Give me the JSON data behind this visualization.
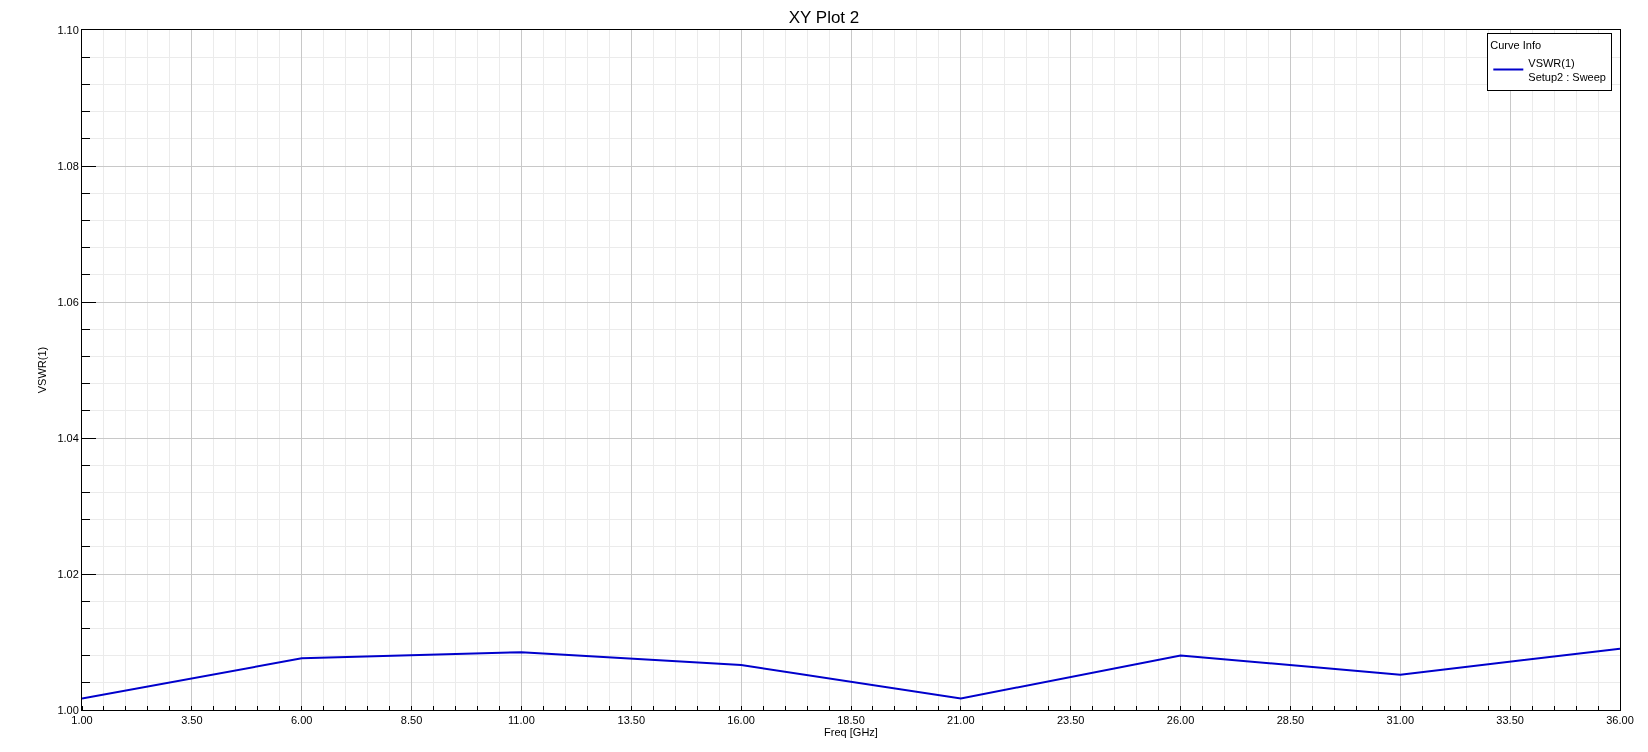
{
  "chart_data": {
    "type": "line",
    "title": "XY Plot 2",
    "xlabel": "Freq [GHz]",
    "ylabel": "VSWR(1)",
    "legend_title": "Curve Info",
    "legend": "top right",
    "grid": true,
    "marker": "none",
    "line_style": "solid",
    "x": [
      1,
      6,
      11,
      16,
      21,
      26,
      31,
      36
    ],
    "series": [
      {
        "name": "VSWR(1)\nSetup2 : Sweep",
        "color": "#0000cc",
        "values": [
          1.0017,
          1.0076,
          1.0085,
          1.0066,
          1.0017,
          1.008,
          1.0052,
          1.009
        ]
      }
    ],
    "xlim": [
      1,
      36
    ],
    "xticks": [
      {
        "value": 1,
        "label": "1.00"
      },
      {
        "value": 3.5,
        "label": "3.50"
      },
      {
        "value": 6,
        "label": "6.00"
      },
      {
        "value": 8.5,
        "label": "8.50"
      },
      {
        "value": 11,
        "label": "11.00"
      },
      {
        "value": 13.5,
        "label": "13.50"
      },
      {
        "value": 16,
        "label": "16.00"
      },
      {
        "value": 18.5,
        "label": "18.50"
      },
      {
        "value": 21,
        "label": "21.00"
      },
      {
        "value": 23.5,
        "label": "23.50"
      },
      {
        "value": 26,
        "label": "26.00"
      },
      {
        "value": 28.5,
        "label": "28.50"
      },
      {
        "value": 31,
        "label": "31.00"
      },
      {
        "value": 33.5,
        "label": "33.50"
      },
      {
        "value": 36,
        "label": "36.00"
      }
    ],
    "ylim": [
      1,
      1.1
    ],
    "yticks": [
      {
        "value": 1,
        "label": "1.00"
      },
      {
        "value": 1.02,
        "label": "1.02"
      },
      {
        "value": 1.04,
        "label": "1.04"
      },
      {
        "value": 1.06,
        "label": "1.06"
      },
      {
        "value": 1.08,
        "label": "1.08"
      },
      {
        "value": 1.1,
        "label": "1.10"
      }
    ]
  }
}
